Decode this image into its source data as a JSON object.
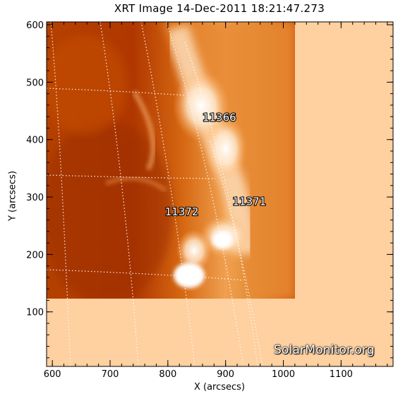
{
  "title": "XRT Image 14-Dec-2011 18:21:47.273",
  "axes": {
    "xlabel": "X (arcsecs)",
    "ylabel": "Y (arcsecs)",
    "xlim": [
      590,
      1190
    ],
    "ylim": [
      5,
      605
    ],
    "xticks": [
      600,
      700,
      800,
      900,
      1000,
      1100
    ],
    "yticks": [
      100,
      200,
      300,
      400,
      500,
      600
    ]
  },
  "image_extent": {
    "x": [
      590,
      1020
    ],
    "y": [
      120,
      605
    ]
  },
  "regions": [
    {
      "label": "11366",
      "x": 860,
      "y": 432
    },
    {
      "label": "11372",
      "x": 795,
      "y": 268
    },
    {
      "label": "11371",
      "x": 912,
      "y": 286
    }
  ],
  "watermark": "SolarMonitor.org",
  "colors": {
    "background_pad": "#ffd0a0",
    "image_dark": "#a83200",
    "image_mid": "#d86a10",
    "image_bright": "#ffffff",
    "grid": "#ffffff"
  }
}
